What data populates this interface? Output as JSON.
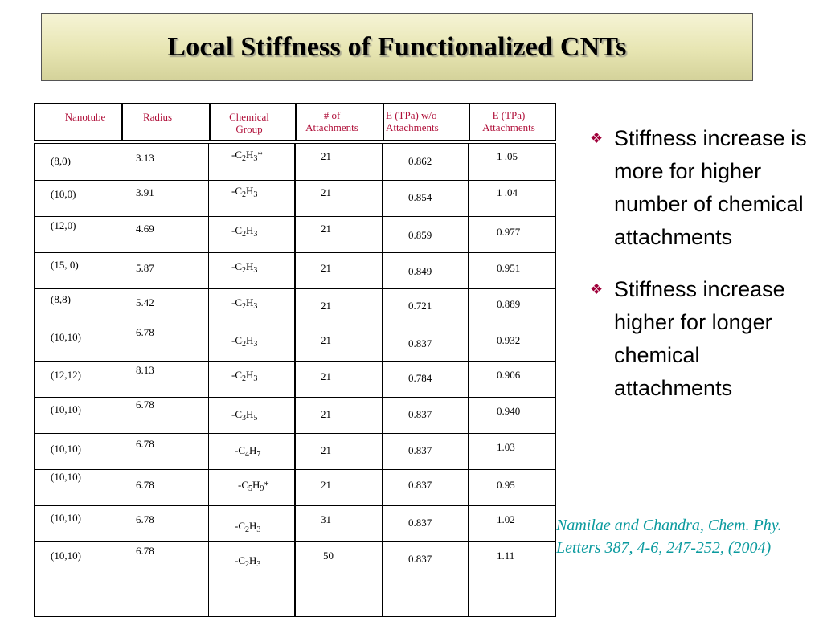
{
  "title": "Local Stiffness of Functionalized CNTs",
  "table": {
    "headers": {
      "nanotube": "Nanotube",
      "radius": "Radius",
      "chemical_group_1": "Chemical",
      "chemical_group_2": "Group",
      "attachments_1": "# of",
      "attachments_2": "Attachments",
      "e_wo_1": "E (TPa)  w/o",
      "e_wo_2": "Attachments",
      "e_w_1": "E (TPa)",
      "e_w_2": "Attachments"
    },
    "rows": [
      {
        "nanotube": "(8,0)",
        "radius": "3.13",
        "group": {
          "a": "-C",
          "n1": "2",
          "b": "H",
          "n2": "3",
          "s": "*"
        },
        "attachments": "21",
        "e_wo": "0.862",
        "e_w": "1 .05"
      },
      {
        "nanotube": "(10,0)",
        "radius": "3.91",
        "group": {
          "a": "-C",
          "n1": "2",
          "b": "H",
          "n2": "3",
          "s": ""
        },
        "attachments": "21",
        "e_wo": "0.854",
        "e_w": "1 .04"
      },
      {
        "nanotube": "(12,0)",
        "radius": "4.69",
        "group": {
          "a": "-C",
          "n1": "2",
          "b": "H",
          "n2": "3",
          "s": ""
        },
        "attachments": "21",
        "e_wo": "0.859",
        "e_w": "0.977"
      },
      {
        "nanotube": "(15, 0)",
        "radius": "5.87",
        "group": {
          "a": "-C",
          "n1": "2",
          "b": "H",
          "n2": "3",
          "s": ""
        },
        "attachments": "21",
        "e_wo": "0.849",
        "e_w": "0.951"
      },
      {
        "nanotube": "(8,8)",
        "radius": "5.42",
        "group": {
          "a": "-C",
          "n1": "2",
          "b": "H",
          "n2": "3",
          "s": ""
        },
        "attachments": "21",
        "e_wo": "0.721",
        "e_w": "0.889"
      },
      {
        "nanotube": "(10,10)",
        "radius": "6.78",
        "group": {
          "a": "-C",
          "n1": "2",
          "b": "H",
          "n2": "3",
          "s": ""
        },
        "attachments": "21",
        "e_wo": "0.837",
        "e_w": "0.932"
      },
      {
        "nanotube": "(12,12)",
        "radius": "8.13",
        "group": {
          "a": "-C",
          "n1": "2",
          "b": "H",
          "n2": "3",
          "s": ""
        },
        "attachments": "21",
        "e_wo": "0.784",
        "e_w": "0.906"
      },
      {
        "nanotube": "(10,10)",
        "radius": "6.78",
        "group": {
          "a": "-C",
          "n1": "3",
          "b": "H",
          "n2": "5",
          "s": ""
        },
        "attachments": "21",
        "e_wo": "0.837",
        "e_w": "0.940"
      },
      {
        "nanotube": "(10,10)",
        "radius": "6.78",
        "group": {
          "a": "-C",
          "n1": "4",
          "b": "H",
          "n2": "7",
          "s": ""
        },
        "attachments": "21",
        "e_wo": "0.837",
        "e_w": "1.03"
      },
      {
        "nanotube": "(10,10)",
        "radius": "6.78",
        "group": {
          "a": "-C",
          "n1": "5",
          "b": "H",
          "n2": "9",
          "s": "*"
        },
        "attachments": "21",
        "e_wo": "0.837",
        "e_w": "0.95"
      },
      {
        "nanotube": "(10,10)",
        "radius": "6.78",
        "group": {
          "a": "-C",
          "n1": "2",
          "b": "H",
          "n2": "3",
          "s": ""
        },
        "attachments": "31",
        "e_wo": "0.837",
        "e_w": "1.02"
      },
      {
        "nanotube": "(10,10)",
        "radius": "6.78",
        "group": {
          "a": "-C",
          "n1": "2",
          "b": "H",
          "n2": "3",
          "s": ""
        },
        "attachments": "50",
        "e_wo": "0.837",
        "e_w": "1.11"
      }
    ]
  },
  "bullets": [
    "Stiffness increase is more for  higher number of chemical attachments",
    "Stiffness increase higher for longer chemical attachments"
  ],
  "bullet_icon": "diamond-cluster-icon",
  "citation": "Namilae and Chandra, Chem. Phy. Letters  387, 4-6, 247-252, (2004)",
  "colors": {
    "header_text": "#b0103a",
    "bullet_mark": "#a0003a",
    "citation": "#0a9a9e"
  }
}
